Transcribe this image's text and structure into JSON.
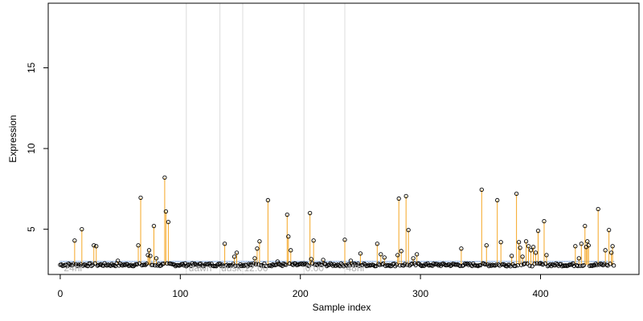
{
  "chart_data": {
    "type": "scatter",
    "xlabel": "Sample index",
    "ylabel": "Expression",
    "xlim": [
      -10,
      482
    ],
    "ylim": [
      2.2,
      19.0
    ],
    "x_ticks": [
      0,
      100,
      200,
      300,
      400
    ],
    "y_ticks": [
      5,
      10,
      15
    ],
    "grid": false,
    "baseline": 2.8,
    "threshold": 3.0,
    "colors": {
      "stem": "#f5a623",
      "threshold_line": "#a9c4ea",
      "point_stroke": "#000000",
      "divider": "#dcdcdc",
      "annotation": "#b0b0b0"
    },
    "dividers": [
      105,
      133,
      152,
      203,
      237
    ],
    "annotations": [
      {
        "x": 3,
        "label": "24hr"
      },
      {
        "x": 107,
        "label": "dawn"
      },
      {
        "x": 134,
        "label": "dusk"
      },
      {
        "x": 153,
        "label": "12:00"
      },
      {
        "x": 204,
        "label": "0:00"
      },
      {
        "x": 238,
        "label": "48hr"
      }
    ],
    "peaks": [
      [
        12,
        4.3
      ],
      [
        18,
        5.0
      ],
      [
        28,
        4.0
      ],
      [
        30,
        3.95
      ],
      [
        48,
        3.05
      ],
      [
        65,
        4.0
      ],
      [
        67,
        6.95
      ],
      [
        73,
        3.4
      ],
      [
        74,
        3.7
      ],
      [
        75,
        3.35
      ],
      [
        78,
        5.2
      ],
      [
        80,
        3.2
      ],
      [
        87,
        8.2
      ],
      [
        88,
        6.1
      ],
      [
        90,
        5.45
      ],
      [
        137,
        4.1
      ],
      [
        145,
        3.3
      ],
      [
        147,
        3.55
      ],
      [
        162,
        3.2
      ],
      [
        164,
        3.8
      ],
      [
        166,
        4.25
      ],
      [
        173,
        6.8
      ],
      [
        181,
        3.0
      ],
      [
        189,
        5.9
      ],
      [
        190,
        4.55
      ],
      [
        192,
        3.7
      ],
      [
        208,
        6.0
      ],
      [
        209,
        3.15
      ],
      [
        211,
        4.3
      ],
      [
        219,
        3.1
      ],
      [
        237,
        4.35
      ],
      [
        242,
        3.05
      ],
      [
        250,
        3.5
      ],
      [
        264,
        4.1
      ],
      [
        267,
        3.45
      ],
      [
        270,
        3.25
      ],
      [
        281,
        3.4
      ],
      [
        282,
        6.9
      ],
      [
        284,
        3.65
      ],
      [
        288,
        7.05
      ],
      [
        290,
        4.95
      ],
      [
        294,
        3.2
      ],
      [
        297,
        3.45
      ],
      [
        334,
        3.8
      ],
      [
        351,
        7.45
      ],
      [
        355,
        4.0
      ],
      [
        364,
        6.8
      ],
      [
        367,
        4.2
      ],
      [
        376,
        3.35
      ],
      [
        380,
        7.2
      ],
      [
        382,
        4.2
      ],
      [
        383,
        3.85
      ],
      [
        385,
        3.3
      ],
      [
        388,
        4.25
      ],
      [
        390,
        3.95
      ],
      [
        392,
        3.7
      ],
      [
        394,
        3.9
      ],
      [
        396,
        3.55
      ],
      [
        398,
        4.9
      ],
      [
        400,
        2.9
      ],
      [
        403,
        5.5
      ],
      [
        405,
        3.4
      ],
      [
        429,
        3.95
      ],
      [
        432,
        3.2
      ],
      [
        434,
        4.1
      ],
      [
        437,
        5.2
      ],
      [
        438,
        3.9
      ],
      [
        439,
        4.25
      ],
      [
        440,
        4.0
      ],
      [
        448,
        6.25
      ],
      [
        454,
        3.7
      ],
      [
        457,
        4.95
      ],
      [
        459,
        3.55
      ],
      [
        460,
        3.95
      ]
    ],
    "total_points": 462
  }
}
